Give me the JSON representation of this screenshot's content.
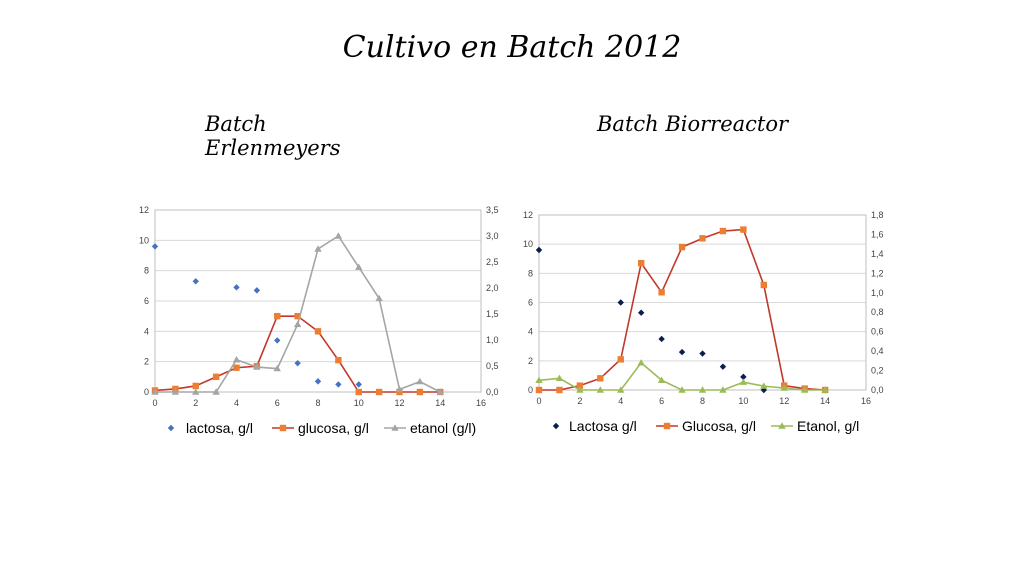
{
  "page": {
    "title": "Cultivo en Batch  2012",
    "left_subtitle": "Batch Erlenmeyers",
    "right_subtitle": "Batch Biorreactor"
  },
  "chart_data": [
    {
      "type": "line",
      "title": "Batch Erlenmeyers",
      "x_ticks": [
        "0",
        "2",
        "4",
        "6",
        "8",
        "10",
        "12",
        "14",
        "16"
      ],
      "y_ticks": [
        "0",
        "2",
        "4",
        "6",
        "8",
        "10",
        "12"
      ],
      "y2_ticks": [
        "0,0",
        "0,5",
        "1,0",
        "1,5",
        "2,0",
        "2,5",
        "3,0",
        "3,5"
      ],
      "xlim": [
        0,
        16
      ],
      "ylim": [
        0,
        12
      ],
      "y2lim": [
        0,
        3.5
      ],
      "grid": true,
      "legend_position": "bottom",
      "series": [
        {
          "name": "lactosa, g/l",
          "style": "scatter",
          "marker": "diamond",
          "color": "#4472C4",
          "axis": "left",
          "x": [
            0,
            2,
            4,
            5,
            6,
            7,
            8,
            9,
            10
          ],
          "y": [
            9.6,
            7.3,
            6.9,
            6.7,
            3.4,
            1.9,
            0.7,
            0.5,
            0.5
          ]
        },
        {
          "name": "glucosa, g/l",
          "style": "line",
          "marker": "square",
          "color": "#C0392B",
          "marker_color": "#ED7D31",
          "axis": "left",
          "x": [
            0,
            1,
            2,
            3,
            4,
            5,
            6,
            7,
            8,
            9,
            10,
            11,
            12,
            13,
            14
          ],
          "y": [
            0.1,
            0.2,
            0.4,
            1.0,
            1.6,
            1.7,
            5.0,
            5.0,
            4.0,
            2.1,
            0,
            0,
            0,
            0,
            0
          ]
        },
        {
          "name": "etanol (g/l)",
          "style": "line",
          "marker": "triangle",
          "color": "#A5A5A5",
          "axis": "right",
          "x": [
            0,
            1,
            2,
            3,
            4,
            5,
            6,
            7,
            8,
            9,
            10,
            11,
            12,
            13,
            14
          ],
          "y": [
            0,
            0,
            0,
            0,
            0.62,
            0.48,
            0.45,
            1.3,
            2.75,
            3.0,
            2.4,
            1.8,
            0.05,
            0.2,
            0
          ]
        }
      ]
    },
    {
      "type": "line",
      "title": "Batch Biorreactor",
      "x_ticks": [
        "0",
        "2",
        "4",
        "6",
        "8",
        "10",
        "12",
        "14",
        "16"
      ],
      "y_ticks": [
        "0",
        "2",
        "4",
        "6",
        "8",
        "10",
        "12"
      ],
      "y2_ticks": [
        "0,0",
        "0,2",
        "0,4",
        "0,6",
        "0,8",
        "1,0",
        "1,2",
        "1,4",
        "1,6",
        "1,8"
      ],
      "xlim": [
        0,
        16
      ],
      "ylim": [
        0,
        12
      ],
      "y2lim": [
        0,
        1.8
      ],
      "grid": true,
      "legend_position": "bottom",
      "series": [
        {
          "name": "Lactosa g/l",
          "style": "scatter",
          "marker": "diamond",
          "color": "#0B1F4E",
          "axis": "left",
          "x": [
            0,
            4,
            5,
            6,
            7,
            8,
            9,
            10,
            11
          ],
          "y": [
            9.6,
            6.0,
            5.3,
            3.5,
            2.6,
            2.5,
            1.6,
            0.9,
            0
          ]
        },
        {
          "name": "Glucosa, g/l",
          "style": "line",
          "marker": "square",
          "color": "#C0392B",
          "marker_color": "#ED7D31",
          "axis": "left",
          "x": [
            0,
            1,
            2,
            3,
            4,
            5,
            6,
            7,
            8,
            9,
            10,
            11,
            12,
            13,
            14
          ],
          "y": [
            0,
            0,
            0.3,
            0.8,
            2.1,
            8.7,
            6.7,
            9.8,
            10.4,
            10.9,
            11.0,
            7.2,
            0.3,
            0.1,
            0
          ]
        },
        {
          "name": "Etanol, g/l",
          "style": "line",
          "marker": "triangle",
          "color": "#9BBB59",
          "axis": "right",
          "x": [
            0,
            1,
            2,
            3,
            4,
            5,
            6,
            7,
            8,
            9,
            10,
            11,
            12,
            13,
            14
          ],
          "y": [
            0.1,
            0.12,
            0,
            0,
            0,
            0.28,
            0.1,
            0,
            0,
            0,
            0.08,
            0.04,
            0.02,
            0,
            0
          ]
        }
      ]
    }
  ]
}
